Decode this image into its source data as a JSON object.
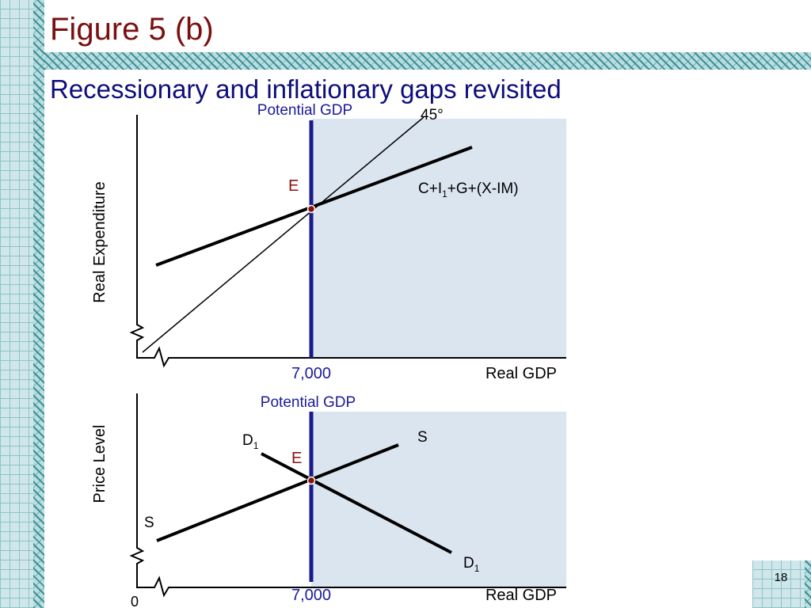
{
  "title": "Figure 5 (b)",
  "subtitle": "Recessionary and inflationary gaps revisited",
  "top_diagram": {
    "potential_label": "Potential GDP",
    "angle_label": "45°",
    "point_label": "E",
    "curve_label": {
      "main": "C+I",
      "sub": "1",
      "rest": "+G+(X-IM)"
    },
    "y_label": "Real Expenditure",
    "x_tick": "7,000",
    "x_label": "Real GDP"
  },
  "bottom_diagram": {
    "potential_label": "Potential GDP",
    "demand_top": {
      "main": "D",
      "sub": "1"
    },
    "supply_top": "S",
    "point_label": "E",
    "supply_bottom": "S",
    "demand_bottom": {
      "main": "D",
      "sub": "1"
    },
    "y_label": "Price Level",
    "x_tick": "7,000",
    "x_label": "Real GDP",
    "origin": "0"
  },
  "page_number": "18"
}
